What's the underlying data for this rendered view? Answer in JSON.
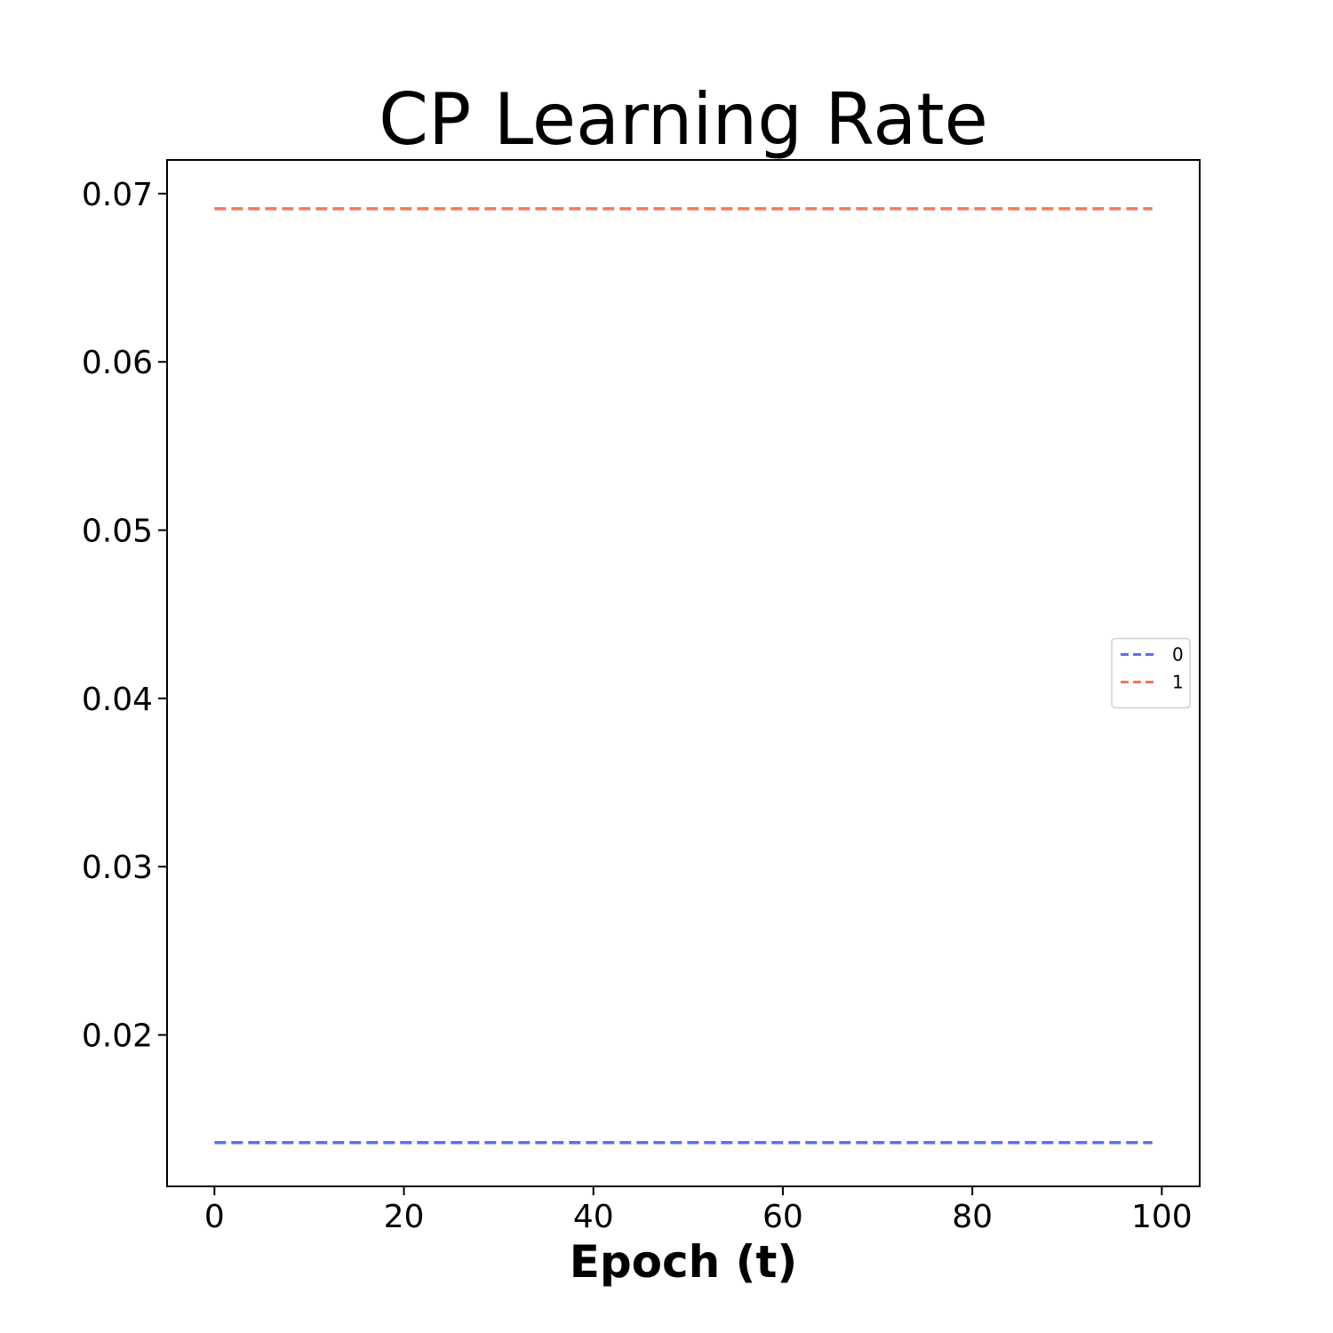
{
  "chart_data": {
    "type": "line",
    "title": "CP Learning Rate",
    "xlabel": "Epoch (t)",
    "ylabel": "",
    "xlim": [
      -5,
      104
    ],
    "ylim": [
      0.011,
      0.072
    ],
    "xticks": [
      0,
      20,
      40,
      60,
      80,
      100
    ],
    "xtick_labels": [
      "0",
      "20",
      "40",
      "60",
      "80",
      "100"
    ],
    "yticks": [
      0.02,
      0.03,
      0.04,
      0.05,
      0.06,
      0.07
    ],
    "ytick_labels": [
      "0.02",
      "0.03",
      "0.04",
      "0.05",
      "0.06",
      "0.07"
    ],
    "grid": false,
    "legend_position": "center-right",
    "series": [
      {
        "name": "0",
        "color": "#5a6ff0",
        "style": "dashed",
        "x": [
          0,
          99
        ],
        "y": [
          0.0136,
          0.0136
        ]
      },
      {
        "name": "1",
        "color": "#f2785c",
        "style": "dashed",
        "x": [
          0,
          99
        ],
        "y": [
          0.0691,
          0.0691
        ]
      }
    ]
  }
}
